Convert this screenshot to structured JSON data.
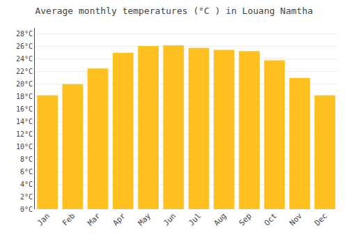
{
  "chart_data": {
    "type": "bar",
    "title": "Average monthly temperatures (°C ) in Louang Namtha",
    "categories": [
      "Jan",
      "Feb",
      "Mar",
      "Apr",
      "May",
      "Jun",
      "Jul",
      "Aug",
      "Sep",
      "Oct",
      "Nov",
      "Dec"
    ],
    "values": [
      18.2,
      20.0,
      22.5,
      25.0,
      26.1,
      26.2,
      25.8,
      25.5,
      25.3,
      23.8,
      21.0,
      18.2
    ],
    "color": "#FFC020",
    "ylim": [
      0,
      29
    ],
    "yticks": [
      {
        "value": 0,
        "label": "0°C"
      },
      {
        "value": 2,
        "label": "2°C"
      },
      {
        "value": 4,
        "label": "4°C"
      },
      {
        "value": 6,
        "label": "6°C"
      },
      {
        "value": 8,
        "label": "8°C"
      },
      {
        "value": 10,
        "label": "10°C"
      },
      {
        "value": 12,
        "label": "12°C"
      },
      {
        "value": 14,
        "label": "14°C"
      },
      {
        "value": 16,
        "label": "16°C"
      },
      {
        "value": 18,
        "label": "18°C"
      },
      {
        "value": 20,
        "label": "20°C"
      },
      {
        "value": 22,
        "label": "22°C"
      },
      {
        "value": 24,
        "label": "24°C"
      },
      {
        "value": 26,
        "label": "26°C"
      },
      {
        "value": 28,
        "label": "28°C"
      }
    ],
    "grid": true
  }
}
